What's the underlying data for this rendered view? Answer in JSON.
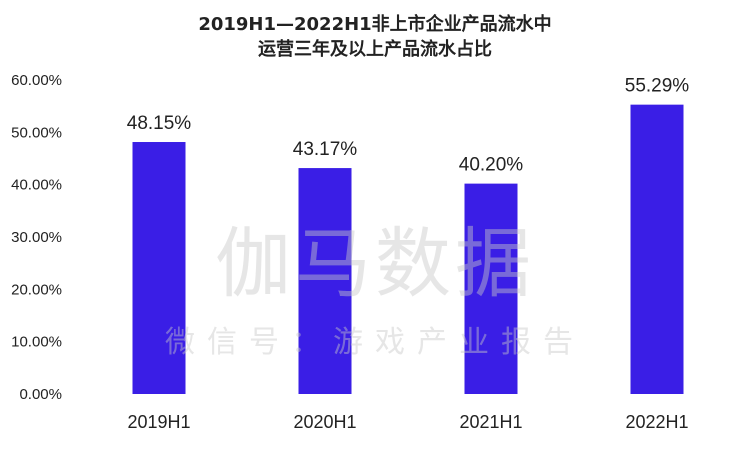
{
  "chart_data": {
    "type": "bar",
    "title_lines": [
      "2019H1—2022H1非上市企业产品流水中",
      "运营三年及以上产品流水占比"
    ],
    "categories": [
      "2019H1",
      "2020H1",
      "2021H1",
      "2022H1"
    ],
    "values": [
      48.15,
      43.17,
      40.2,
      55.29
    ],
    "data_labels": [
      "48.15%",
      "43.17%",
      "40.20%",
      "55.29%"
    ],
    "y_ticks": [
      "0.00%",
      "10.00%",
      "20.00%",
      "30.00%",
      "40.00%",
      "50.00%",
      "60.00%"
    ],
    "ylim": [
      0,
      60
    ],
    "grid": false,
    "legend": "none",
    "bar_color": "#3a1ee6"
  },
  "watermark": {
    "line1": "伽马数据",
    "line2": "微信号：游戏产业报告"
  }
}
